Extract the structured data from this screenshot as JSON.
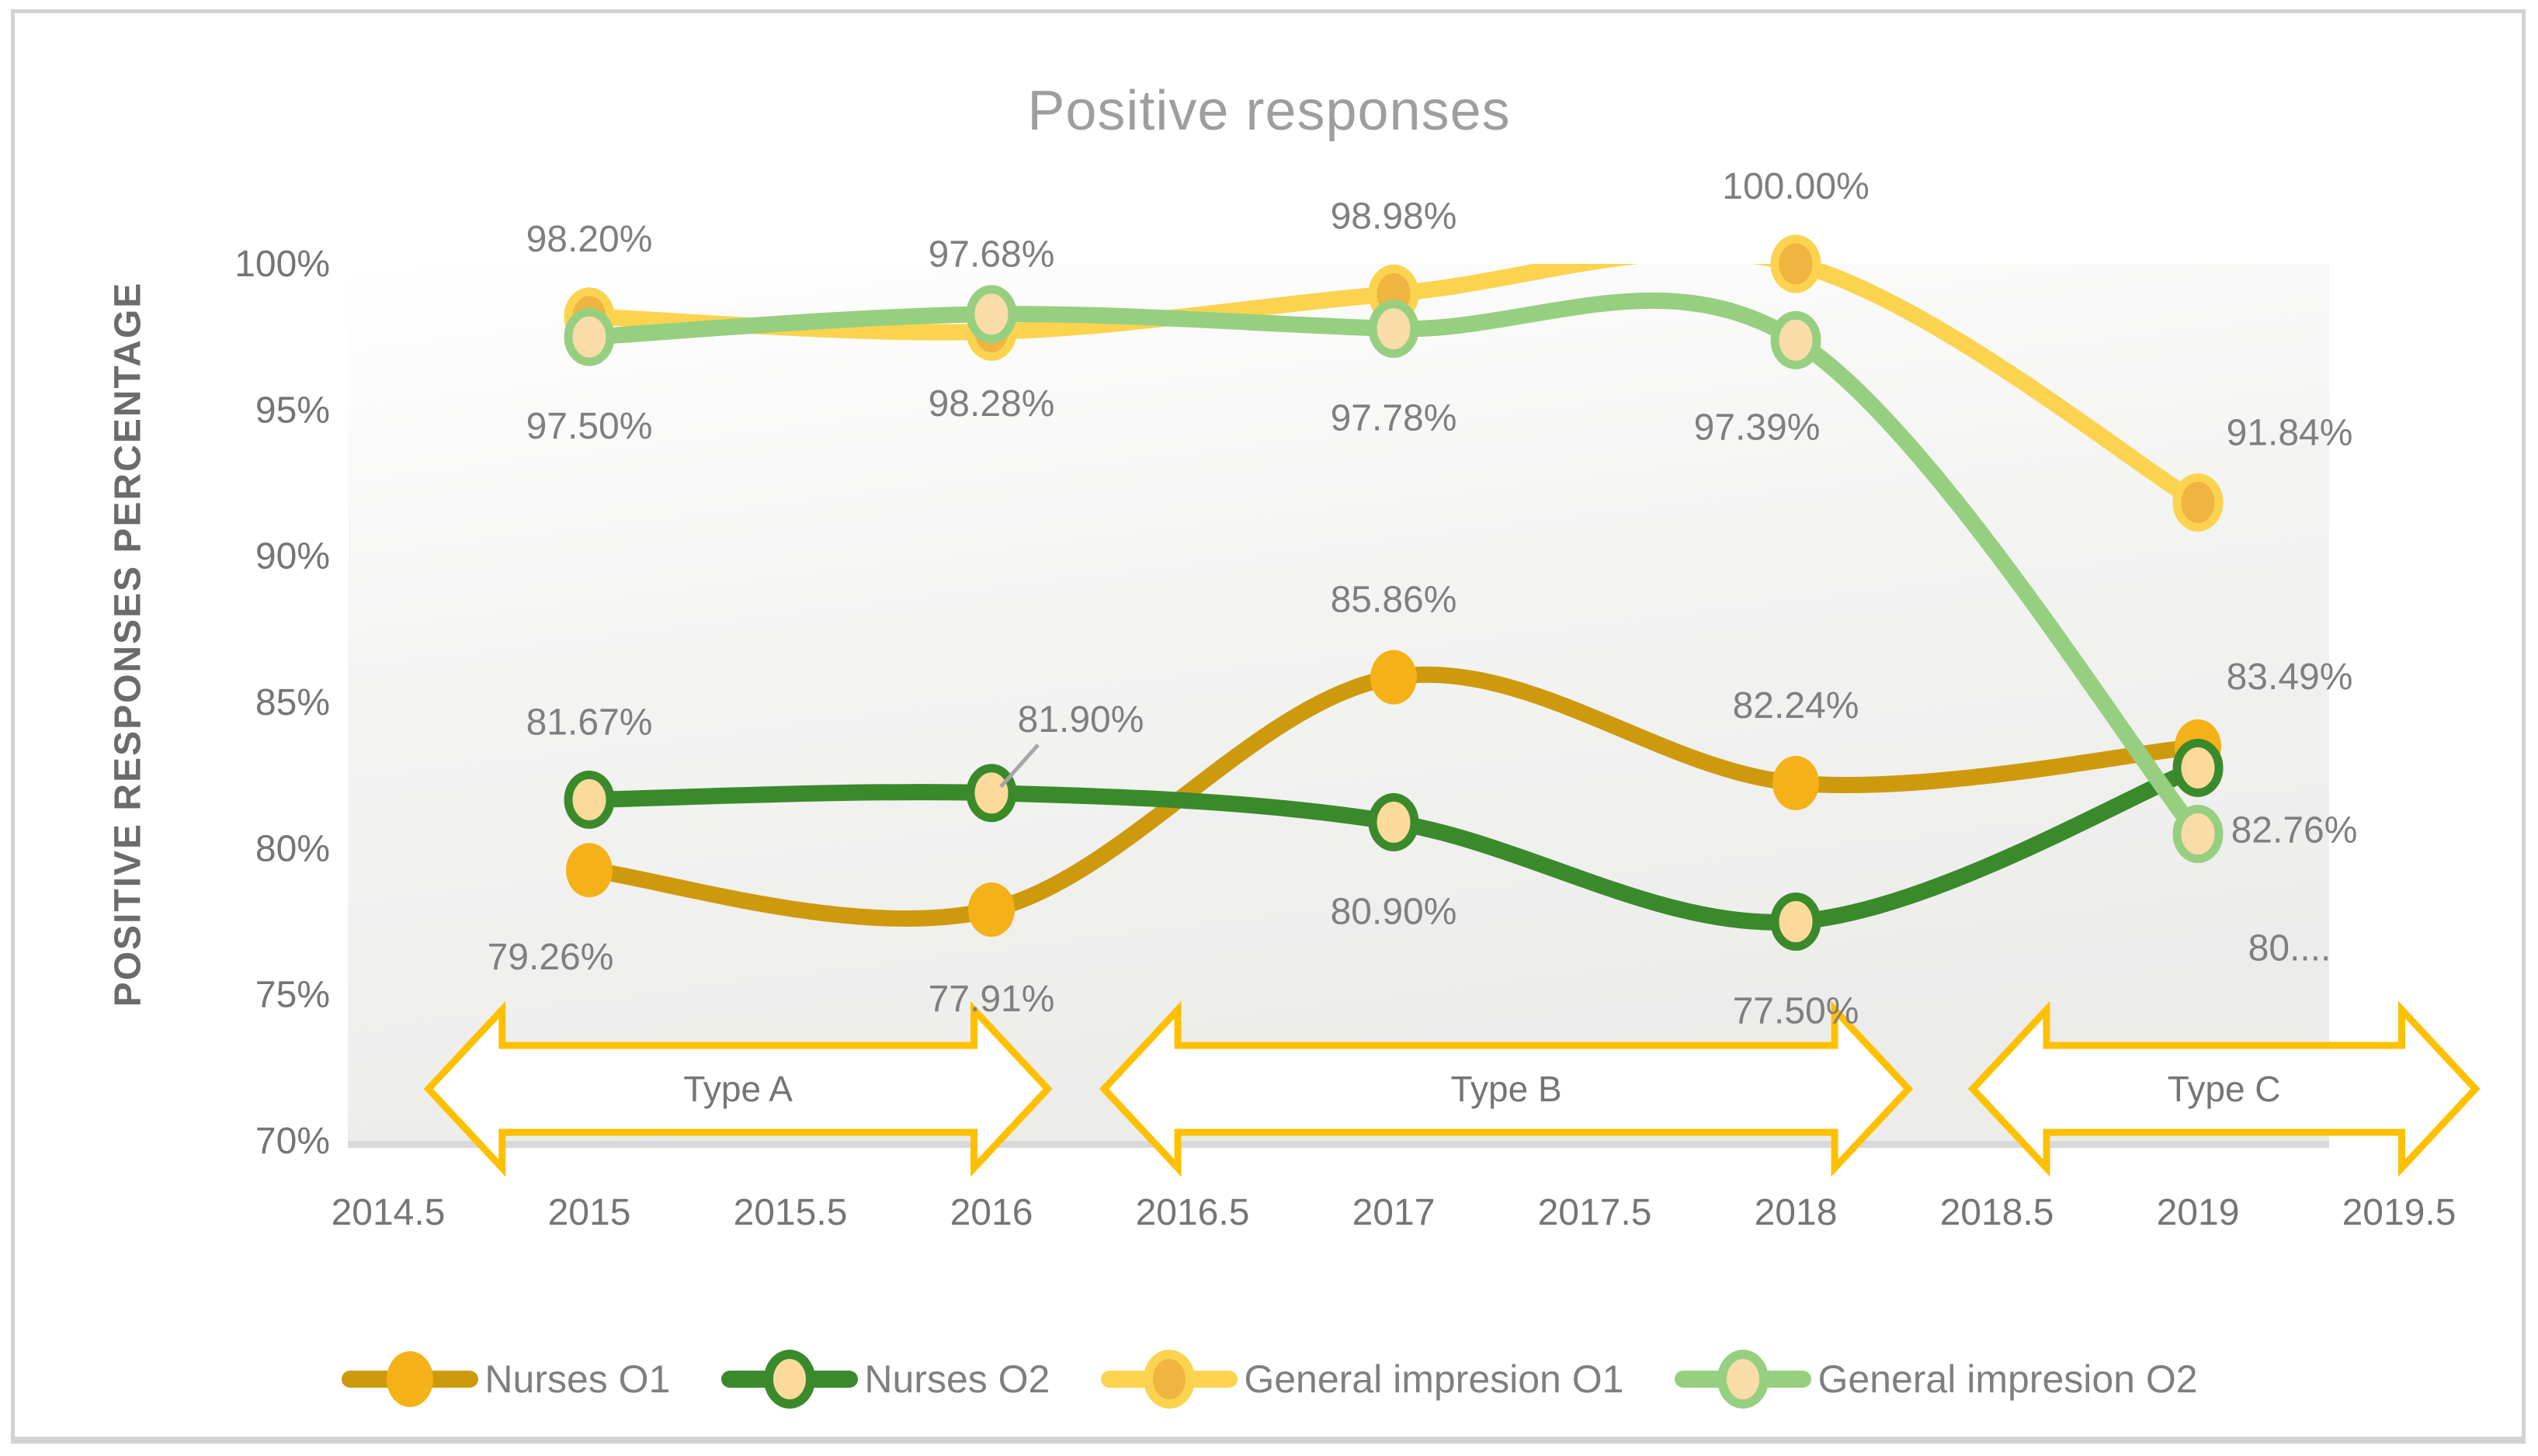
{
  "figure": {
    "title": "Positive responses",
    "y_axis_title": "POSITIVE RESPONSES PERCENTAGE"
  },
  "chart_data": {
    "type": "line",
    "title": "Positive responses",
    "ylabel": "POSITIVE RESPONSES PERCENTAGE",
    "xlabel": "",
    "x": [
      2015,
      2016,
      2017,
      2018,
      2019
    ],
    "xlim": [
      2014.5,
      2019.5
    ],
    "ylim": [
      70,
      100
    ],
    "grid": false,
    "legend_position": "bottom",
    "x_axis_ticks": [
      "2014.5",
      "2015",
      "2015.5",
      "2016",
      "2016.5",
      "2017",
      "2017.5",
      "2018",
      "2018.5",
      "2019",
      "2019.5"
    ],
    "y_axis_ticks": [
      "100%",
      "95%",
      "90%",
      "85%",
      "80%",
      "75%",
      "70%"
    ],
    "series": [
      {
        "name": "Nurses O1",
        "line_color": "#CE9A0D",
        "marker_fill": "#F5B118",
        "marker_ring": null,
        "values": [
          79.26,
          77.91,
          85.86,
          82.24,
          83.49
        ],
        "data_labels": [
          "79.26%",
          "77.91%",
          "85.86%",
          "82.24%",
          "83.49%"
        ],
        "label_placement": [
          "below-left",
          "below",
          "above",
          "above",
          "above-right"
        ]
      },
      {
        "name": "Nurses O2",
        "line_color": "#3A8A2B",
        "marker_fill": "#FBDA9B",
        "marker_ring": "#3A8A2B",
        "values": [
          81.67,
          81.9,
          80.9,
          77.5,
          82.76
        ],
        "data_labels": [
          "81.67%",
          "81.90%",
          "80.90%",
          "77.50%",
          "82.76%"
        ],
        "label_placement": [
          "above",
          "above-leader",
          "below",
          "below",
          "right-below"
        ]
      },
      {
        "name": "General impresion O1",
        "line_color": "#FBD34F",
        "marker_fill": "#F0B440",
        "marker_ring": "#FBD34F",
        "values": [
          98.2,
          97.68,
          98.98,
          100.0,
          91.84
        ],
        "data_labels": [
          "98.20%",
          "97.68%",
          "98.98%",
          "100.00%",
          "91.84%"
        ],
        "label_placement": [
          "above",
          "above",
          "above",
          "above",
          "above-right"
        ]
      },
      {
        "name": "General impresion O2",
        "line_color": "#97CF80",
        "marker_fill": "#F9DCA8",
        "marker_ring": "#97CF80",
        "values": [
          97.5,
          98.28,
          97.78,
          97.39,
          80.5
        ],
        "data_labels": [
          "97.50%",
          "98.28%",
          "97.78%",
          "97.39%",
          "80...."
        ],
        "label_placement": [
          "below",
          "below",
          "below",
          "below-left",
          "below-right"
        ]
      }
    ],
    "annotations": {
      "arrow_color": "#FFC000",
      "arrow_text_color": "#757575",
      "arrows": [
        {
          "label": "Type A",
          "from": 2014.6,
          "to": 2016.14
        },
        {
          "label": "Type B",
          "from": 2016.28,
          "to": 2018.28
        },
        {
          "label": "Type C",
          "from": 2018.44,
          "to": 2019.69
        }
      ]
    },
    "style": {
      "data_label_color": "#7F7F7F",
      "tick_color": "#757575",
      "title_color": "#9E9E9E",
      "axis_line_color": "#D9D9D9",
      "plot_bg_top": "#FFFFFF",
      "plot_bg_mid": "#F4F4F3",
      "plot_bg_bottom": "#ECECEB",
      "leader_line_color": "#A6A6A6"
    }
  }
}
